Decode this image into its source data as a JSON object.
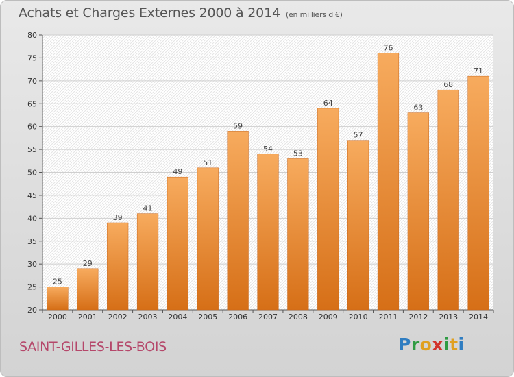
{
  "title": "Achats et Charges Externes 2000 à 2014",
  "unit_note": "(en milliers d'€)",
  "commune": "SAINT-GILLES-LES-BOIS",
  "logo": {
    "letters": [
      "P",
      "r",
      "o",
      "x",
      "i",
      "t",
      "i"
    ],
    "colors": [
      "#2f7dc1",
      "#2f9b43",
      "#e0a020",
      "#d2332b",
      "#2f9b43",
      "#e0a020",
      "#2f7dc1"
    ]
  },
  "colors": {
    "bar_light": "#f7ab5e",
    "bar_dark": "#d66f17",
    "commune": "#b5476a"
  },
  "chart_data": {
    "type": "bar",
    "title": "Achats et Charges Externes 2000 à 2014",
    "categories": [
      "2000",
      "2001",
      "2002",
      "2003",
      "2004",
      "2005",
      "2006",
      "2007",
      "2008",
      "2009",
      "2010",
      "2011",
      "2012",
      "2013",
      "2014"
    ],
    "values": [
      25,
      29,
      39,
      41,
      49,
      51,
      59,
      54,
      53,
      64,
      57,
      76,
      63,
      68,
      71
    ],
    "ylim": [
      20,
      80
    ],
    "yticks": [
      20,
      25,
      30,
      35,
      40,
      45,
      50,
      55,
      60,
      65,
      70,
      75,
      80
    ],
    "grid": true,
    "data_labels": true
  }
}
